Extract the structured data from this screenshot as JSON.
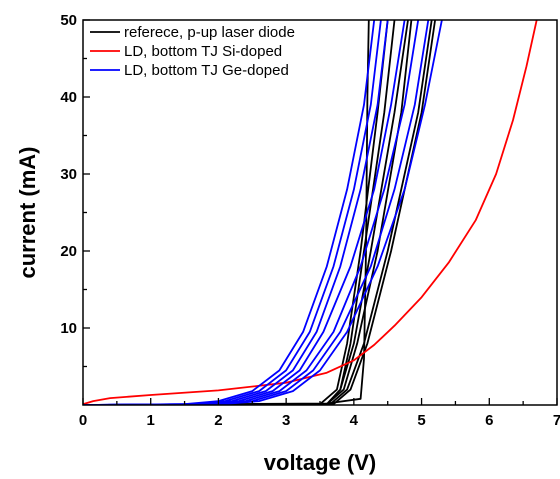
{
  "chart_data": {
    "type": "line",
    "title": "",
    "xlabel": "voltage (V)",
    "ylabel": "current (mA)",
    "xlim": [
      0,
      7
    ],
    "ylim": [
      0,
      50
    ],
    "x_ticks": [
      0,
      1,
      2,
      3,
      4,
      5,
      6,
      7
    ],
    "y_ticks": [
      10,
      20,
      30,
      40,
      50
    ],
    "grid": false,
    "legend_position": "top-left",
    "legend": [
      {
        "label": "referece, p-up laser diode",
        "color": "#000000"
      },
      {
        "label": "LD, bottom TJ Si-doped",
        "color": "#ff0000"
      },
      {
        "label": "LD, bottom TJ Ge-doped",
        "color": "#0000ff"
      }
    ],
    "series": [
      {
        "name": "referece, p-up laser diode",
        "color": "#000000",
        "points": [
          [
            0,
            0
          ],
          [
            3.6,
            0.2
          ],
          [
            4.1,
            0.8
          ],
          [
            4.15,
            6
          ],
          [
            4.18,
            20
          ],
          [
            4.2,
            40
          ],
          [
            4.22,
            50
          ]
        ]
      },
      {
        "color": "#000000",
        "points": [
          [
            0,
            0
          ],
          [
            3.5,
            0.1
          ],
          [
            3.75,
            2
          ],
          [
            3.9,
            8
          ],
          [
            4.1,
            20
          ],
          [
            4.35,
            38
          ],
          [
            4.5,
            50
          ]
        ]
      },
      {
        "color": "#000000",
        "points": [
          [
            0,
            0
          ],
          [
            3.6,
            0.1
          ],
          [
            3.8,
            2
          ],
          [
            3.95,
            8
          ],
          [
            4.15,
            20
          ],
          [
            4.45,
            38
          ],
          [
            4.6,
            50
          ]
        ]
      },
      {
        "color": "#000000",
        "points": [
          [
            0,
            0
          ],
          [
            3.6,
            0.1
          ],
          [
            3.8,
            2
          ],
          [
            4.0,
            8
          ],
          [
            4.25,
            20
          ],
          [
            4.6,
            38
          ],
          [
            4.8,
            50
          ]
        ]
      },
      {
        "color": "#000000",
        "points": [
          [
            0,
            0
          ],
          [
            3.6,
            0.1
          ],
          [
            3.85,
            2
          ],
          [
            4.05,
            8
          ],
          [
            4.35,
            20
          ],
          [
            4.7,
            38
          ],
          [
            4.85,
            50
          ]
        ]
      },
      {
        "color": "#000000",
        "points": [
          [
            0,
            0
          ],
          [
            3.65,
            0.1
          ],
          [
            3.9,
            2
          ],
          [
            4.15,
            8
          ],
          [
            4.5,
            20
          ],
          [
            4.95,
            38
          ],
          [
            5.15,
            50
          ]
        ]
      },
      {
        "color": "#000000",
        "points": [
          [
            0,
            0
          ],
          [
            3.7,
            0.1
          ],
          [
            3.95,
            2
          ],
          [
            4.2,
            8
          ],
          [
            4.55,
            20
          ],
          [
            5.0,
            38
          ],
          [
            5.2,
            50
          ]
        ]
      },
      {
        "name": "LD, bottom TJ Si-doped",
        "color": "#ff0000",
        "points": [
          [
            0,
            0.1
          ],
          [
            0.15,
            0.5
          ],
          [
            0.4,
            0.9
          ],
          [
            1.0,
            1.3
          ],
          [
            2.0,
            1.9
          ],
          [
            3.0,
            2.9
          ],
          [
            3.6,
            4.2
          ],
          [
            4.0,
            5.8
          ],
          [
            4.3,
            7.8
          ],
          [
            4.6,
            10.3
          ],
          [
            5.0,
            14
          ],
          [
            5.4,
            18.5
          ],
          [
            5.8,
            24
          ],
          [
            6.1,
            30
          ],
          [
            6.35,
            37
          ],
          [
            6.55,
            44
          ],
          [
            6.7,
            50
          ]
        ]
      },
      {
        "name": "LD, bottom TJ Ge-doped",
        "color": "#0000ff",
        "points": [
          [
            0,
            0
          ],
          [
            1.5,
            0.1
          ],
          [
            2.0,
            0.5
          ],
          [
            2.5,
            1.8
          ],
          [
            2.9,
            4.5
          ],
          [
            3.25,
            9.5
          ],
          [
            3.6,
            18
          ],
          [
            3.9,
            28
          ],
          [
            4.15,
            39
          ],
          [
            4.3,
            50
          ]
        ]
      },
      {
        "color": "#0000ff",
        "points": [
          [
            0,
            0
          ],
          [
            1.6,
            0.1
          ],
          [
            2.1,
            0.5
          ],
          [
            2.6,
            1.8
          ],
          [
            3.0,
            4.5
          ],
          [
            3.35,
            9.5
          ],
          [
            3.7,
            18
          ],
          [
            4.0,
            28
          ],
          [
            4.25,
            39
          ],
          [
            4.4,
            50
          ]
        ]
      },
      {
        "color": "#0000ff",
        "points": [
          [
            0,
            0
          ],
          [
            1.7,
            0.1
          ],
          [
            2.2,
            0.5
          ],
          [
            2.7,
            1.8
          ],
          [
            3.1,
            4.5
          ],
          [
            3.45,
            9.5
          ],
          [
            3.8,
            18
          ],
          [
            4.1,
            28
          ],
          [
            4.35,
            39
          ],
          [
            4.5,
            50
          ]
        ]
      },
      {
        "color": "#0000ff",
        "points": [
          [
            0,
            0
          ],
          [
            1.8,
            0.1
          ],
          [
            2.3,
            0.5
          ],
          [
            2.8,
            1.8
          ],
          [
            3.2,
            4.5
          ],
          [
            3.55,
            9.5
          ],
          [
            3.95,
            18
          ],
          [
            4.3,
            28
          ],
          [
            4.55,
            39
          ],
          [
            4.75,
            50
          ]
        ]
      },
      {
        "color": "#0000ff",
        "points": [
          [
            0,
            0
          ],
          [
            1.9,
            0.1
          ],
          [
            2.4,
            0.5
          ],
          [
            2.9,
            1.8
          ],
          [
            3.3,
            4.5
          ],
          [
            3.7,
            9.5
          ],
          [
            4.1,
            18
          ],
          [
            4.45,
            28
          ],
          [
            4.75,
            39
          ],
          [
            4.95,
            50
          ]
        ]
      },
      {
        "color": "#0000ff",
        "points": [
          [
            0,
            0
          ],
          [
            2.0,
            0.1
          ],
          [
            2.5,
            0.5
          ],
          [
            3.0,
            1.8
          ],
          [
            3.4,
            4.5
          ],
          [
            3.8,
            9.5
          ],
          [
            4.25,
            18
          ],
          [
            4.6,
            28
          ],
          [
            4.9,
            39
          ],
          [
            5.1,
            50
          ]
        ]
      },
      {
        "color": "#0000ff",
        "points": [
          [
            0,
            0
          ],
          [
            2.05,
            0.1
          ],
          [
            2.6,
            0.5
          ],
          [
            3.1,
            1.8
          ],
          [
            3.5,
            4.5
          ],
          [
            3.9,
            9.5
          ],
          [
            4.35,
            18
          ],
          [
            4.75,
            28
          ],
          [
            5.05,
            39
          ],
          [
            5.3,
            50
          ]
        ]
      }
    ]
  }
}
